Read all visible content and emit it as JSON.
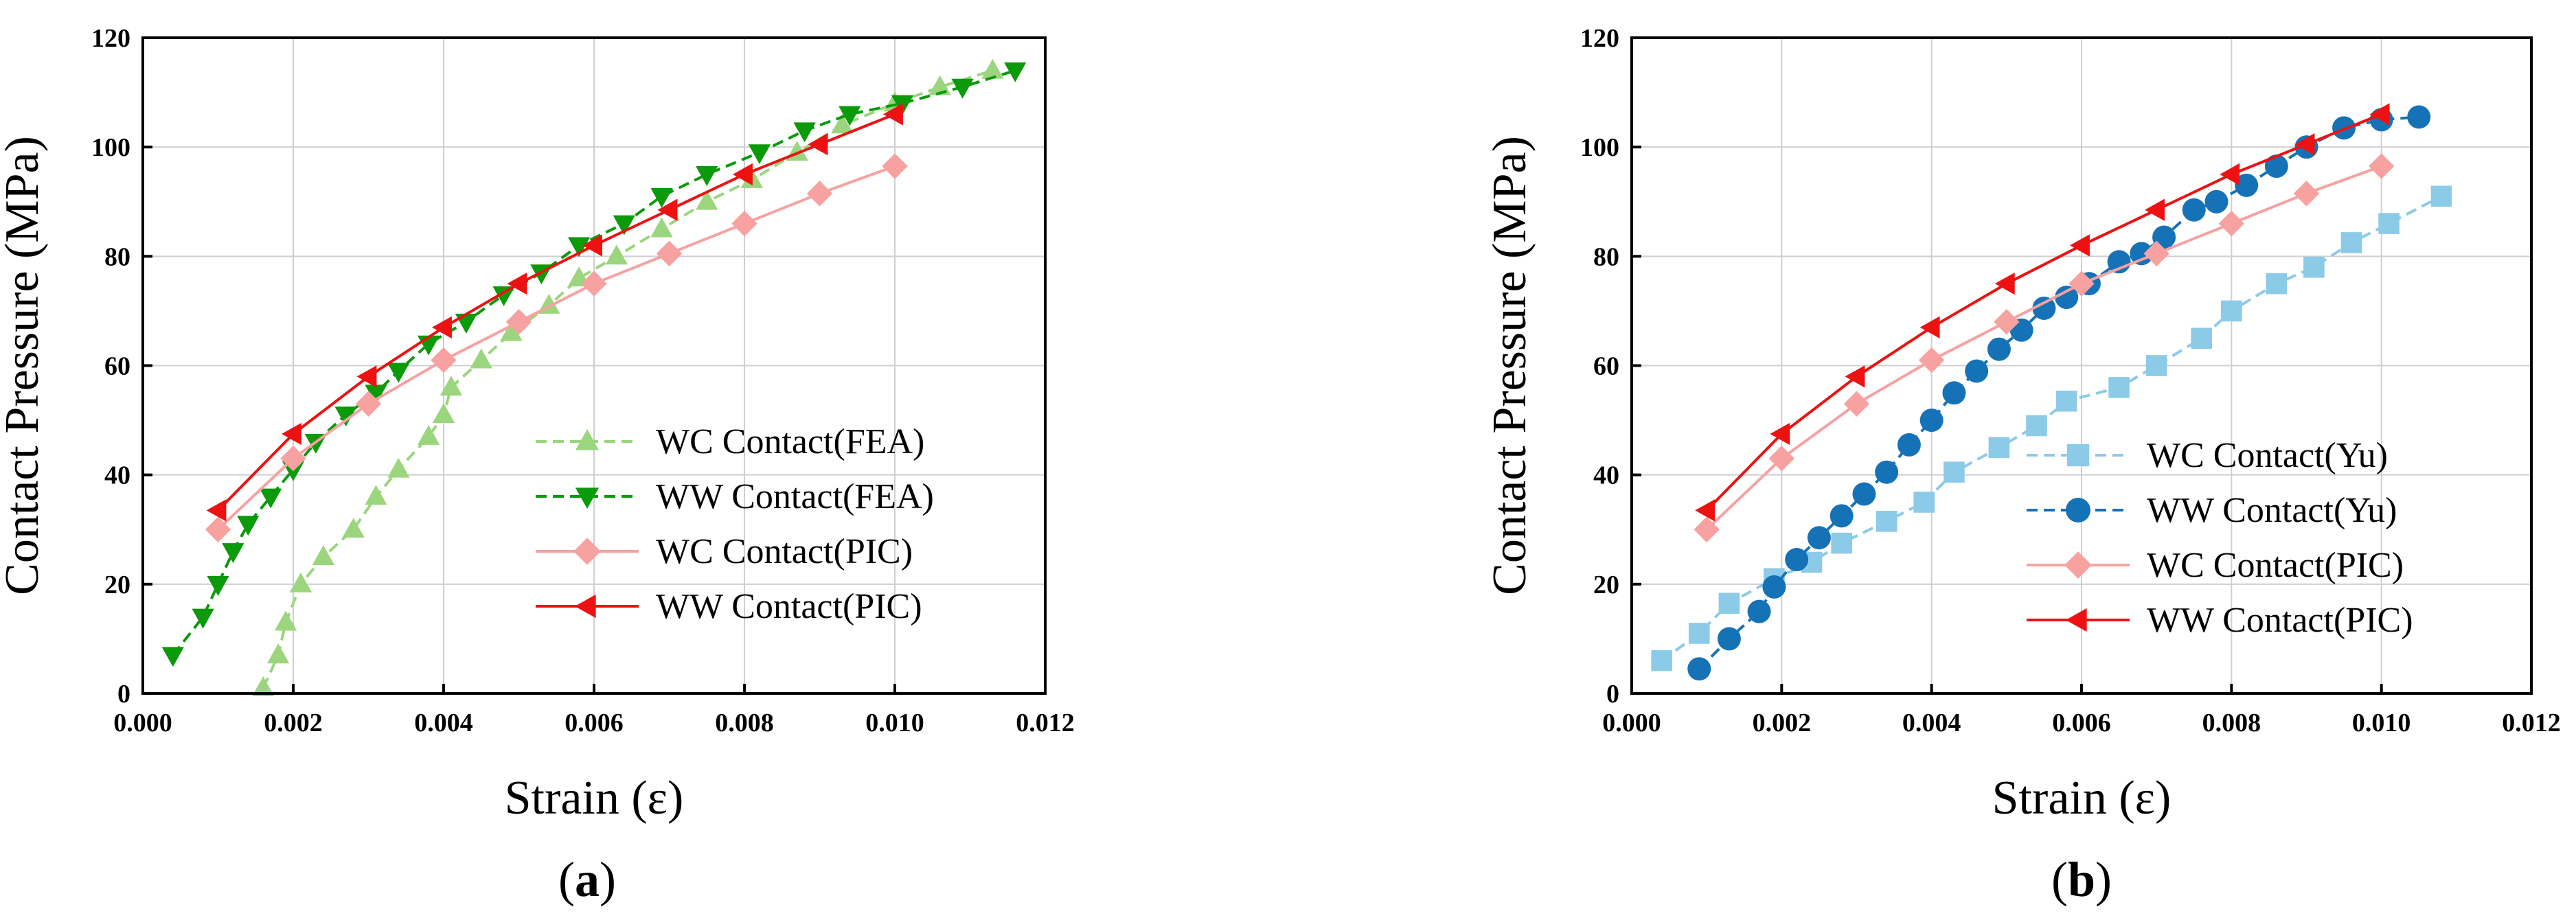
{
  "chart_data": [
    {
      "type": "line",
      "panel_label": "(a)",
      "panel_letter": "a",
      "xlabel": "Strain (ε)",
      "ylabel": "Contact Pressure (MPa)",
      "xlim": [
        0,
        0.012
      ],
      "ylim": [
        0,
        120
      ],
      "xticks": [
        "0.000",
        "0.002",
        "0.004",
        "0.006",
        "0.008",
        "0.010",
        "0.012"
      ],
      "yticks": [
        "0",
        "20",
        "40",
        "60",
        "80",
        "100",
        "120"
      ],
      "grid": true,
      "legend_position": "center-right",
      "series": [
        {
          "name": "WC Contact(FEA)",
          "color": "#9bd67e",
          "dash": "dashed",
          "marker": "triangle-up",
          "x": [
            0.0016,
            0.0018,
            0.0019,
            0.0021,
            0.0024,
            0.0028,
            0.0031,
            0.0034,
            0.0038,
            0.004,
            0.0041,
            0.0045,
            0.0049,
            0.0054,
            0.0058,
            0.0063,
            0.0069,
            0.0075,
            0.0081,
            0.0087,
            0.0093,
            0.01,
            0.0106,
            0.0113
          ],
          "y": [
            1,
            7,
            13,
            20,
            25,
            30,
            36,
            41,
            47,
            51,
            56,
            61,
            66,
            71,
            76,
            80,
            85,
            90,
            94,
            99,
            104,
            108,
            111,
            114
          ]
        },
        {
          "name": "WW Contact(FEA)",
          "color": "#0a9a0a",
          "dash": "dashed",
          "marker": "triangle-down",
          "x": [
            0.0004,
            0.0008,
            0.001,
            0.0012,
            0.0014,
            0.0017,
            0.002,
            0.0023,
            0.0027,
            0.0031,
            0.0034,
            0.0038,
            0.0043,
            0.0048,
            0.0053,
            0.0058,
            0.0064,
            0.0069,
            0.0075,
            0.0082,
            0.0088,
            0.0094,
            0.0101,
            0.0109,
            0.0116
          ],
          "y": [
            7,
            14,
            20,
            26,
            31,
            36,
            41,
            46,
            51,
            55,
            59,
            64,
            68,
            73,
            77,
            82,
            86,
            91,
            95,
            99,
            103,
            106,
            108,
            111,
            114
          ]
        },
        {
          "name": "WC Contact(PIC)",
          "color": "#f7a1a1",
          "dash": "solid",
          "marker": "diamond",
          "x": [
            0.001,
            0.002,
            0.003,
            0.004,
            0.005,
            0.006,
            0.007,
            0.008,
            0.009,
            0.01
          ],
          "y": [
            30,
            43,
            53,
            61,
            68,
            75,
            80.5,
            86,
            91.5,
            96.5
          ]
        },
        {
          "name": "WW Contact(PIC)",
          "color": "#ee1111",
          "dash": "solid",
          "marker": "triangle-left",
          "x": [
            0.001,
            0.002,
            0.003,
            0.004,
            0.005,
            0.006,
            0.007,
            0.008,
            0.009,
            0.01
          ],
          "y": [
            33.5,
            47.5,
            58,
            67,
            75,
            82,
            88.5,
            95,
            100.5,
            106
          ]
        }
      ]
    },
    {
      "type": "line",
      "panel_label": "(b)",
      "panel_letter": "b",
      "xlabel": "Strain (ε)",
      "ylabel": "Contact Pressure (MPa)",
      "xlim": [
        0,
        0.012
      ],
      "ylim": [
        0,
        120
      ],
      "xticks": [
        "0.000",
        "0.002",
        "0.004",
        "0.006",
        "0.008",
        "0.010",
        "0.012"
      ],
      "yticks": [
        "0",
        "20",
        "40",
        "60",
        "80",
        "100",
        "120"
      ],
      "grid": true,
      "legend_position": "center-right",
      "series": [
        {
          "name": "WC Contact(Yu)",
          "color": "#8ccbe8",
          "dash": "dashed",
          "marker": "square",
          "x": [
            0.0004,
            0.0009,
            0.0013,
            0.0019,
            0.0024,
            0.0028,
            0.0034,
            0.0039,
            0.0043,
            0.0049,
            0.0054,
            0.0058,
            0.0065,
            0.007,
            0.0076,
            0.008,
            0.0086,
            0.0091,
            0.0096,
            0.0101,
            0.0108
          ],
          "y": [
            6,
            11,
            16.5,
            21,
            24,
            27.5,
            31.5,
            35,
            40.5,
            45,
            49,
            53.5,
            56,
            60,
            65,
            70,
            75,
            78,
            82.5,
            86,
            91
          ]
        },
        {
          "name": "WW Contact(Yu)",
          "color": "#1672b6",
          "dash": "dashed",
          "marker": "circle",
          "x": [
            0.0009,
            0.0013,
            0.0017,
            0.0019,
            0.0022,
            0.0025,
            0.0028,
            0.0031,
            0.0034,
            0.0037,
            0.004,
            0.0043,
            0.0046,
            0.0049,
            0.0052,
            0.0055,
            0.0058,
            0.0061,
            0.0065,
            0.0068,
            0.0071,
            0.0075,
            0.0078,
            0.0082,
            0.0086,
            0.009,
            0.0095,
            0.01,
            0.0105
          ],
          "y": [
            4.5,
            10,
            15,
            19.5,
            24.5,
            28.5,
            32.5,
            36.5,
            40.5,
            45.5,
            50,
            55,
            59,
            63,
            66.5,
            70.5,
            72.5,
            75,
            79,
            80.5,
            83.5,
            88.5,
            90,
            93,
            96.5,
            100,
            103.5,
            105,
            105.5
          ]
        },
        {
          "name": "WC Contact(PIC)",
          "color": "#f7a1a1",
          "dash": "solid",
          "marker": "diamond",
          "x": [
            0.001,
            0.002,
            0.003,
            0.004,
            0.005,
            0.006,
            0.007,
            0.008,
            0.009,
            0.01
          ],
          "y": [
            30,
            43,
            53,
            61,
            68,
            75,
            80.5,
            86,
            91.5,
            96.5
          ]
        },
        {
          "name": "WW Contact(PIC)",
          "color": "#ee1111",
          "dash": "solid",
          "marker": "triangle-left",
          "x": [
            0.001,
            0.002,
            0.003,
            0.004,
            0.005,
            0.006,
            0.007,
            0.008,
            0.009,
            0.01
          ],
          "y": [
            33.5,
            47.5,
            58,
            67,
            75,
            82,
            88.5,
            95,
            100.5,
            106
          ]
        }
      ]
    }
  ]
}
